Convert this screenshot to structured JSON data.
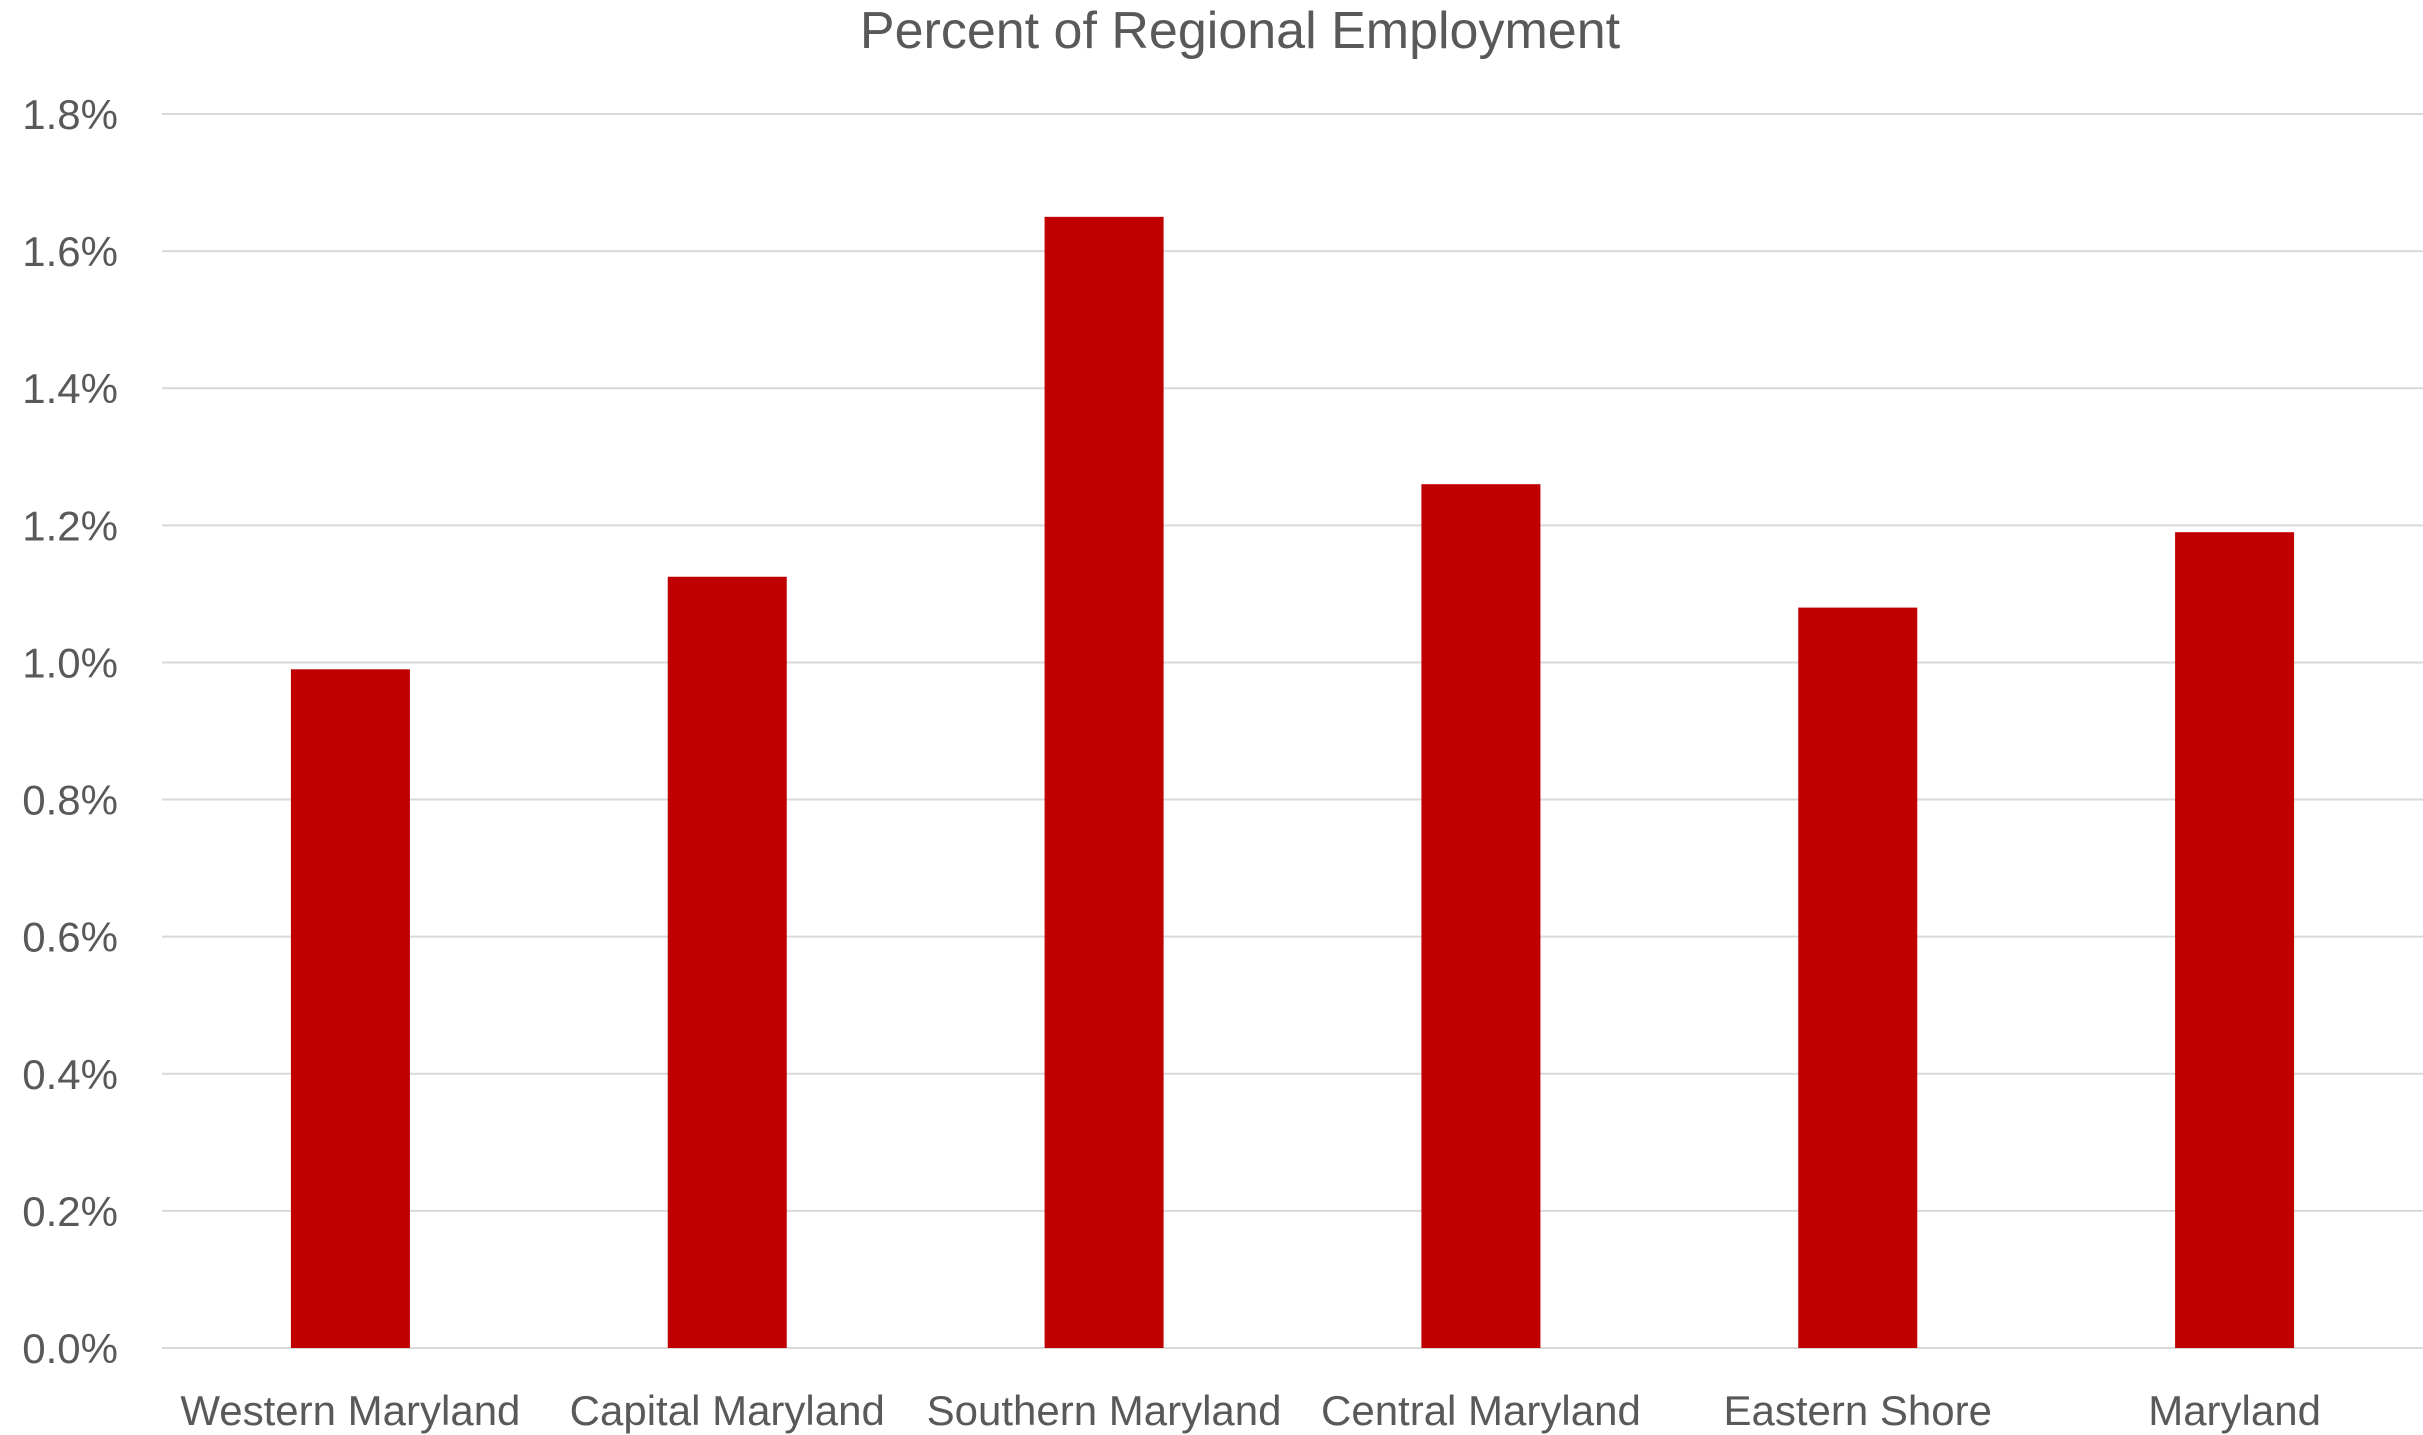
{
  "chart_data": {
    "type": "bar",
    "title": "Percent of Regional Employment",
    "xlabel": "",
    "ylabel": "",
    "categories": [
      "Western Maryland",
      "Capital Maryland",
      "Southern Maryland",
      "Central Maryland",
      "Eastern Shore",
      "Maryland"
    ],
    "values": [
      0.99,
      1.125,
      1.65,
      1.26,
      1.08,
      1.19
    ],
    "value_format": "percent",
    "ylim": [
      0,
      1.8
    ],
    "yticks": [
      "0.0%",
      "0.2%",
      "0.4%",
      "0.6%",
      "0.8%",
      "1.0%",
      "1.2%",
      "1.4%",
      "1.6%",
      "1.8%"
    ],
    "grid": true,
    "legend": "none",
    "bar_color": "#c00000"
  }
}
